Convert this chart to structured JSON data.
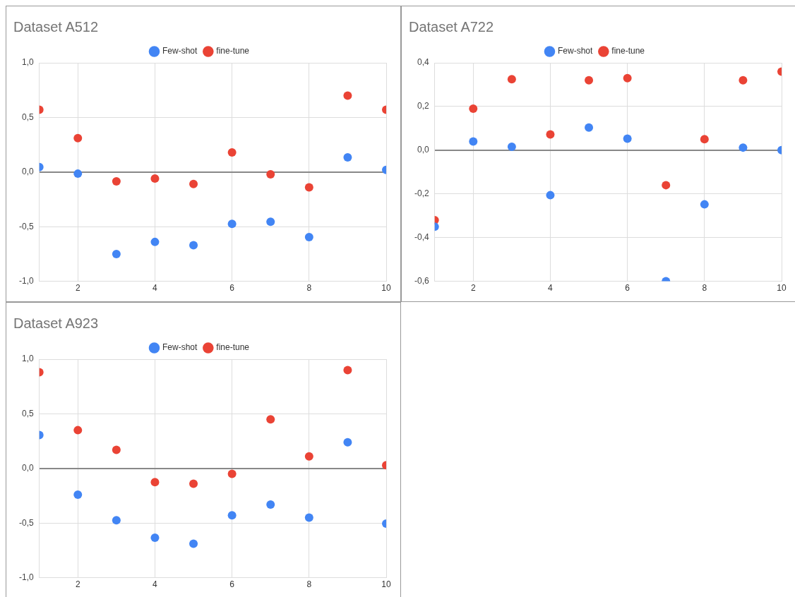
{
  "chart_data": [
    {
      "type": "scatter",
      "title": "Dataset A512",
      "x": [
        1,
        2,
        3,
        4,
        5,
        6,
        7,
        8,
        9,
        10
      ],
      "xlim": [
        1,
        10
      ],
      "xticks": [
        2,
        4,
        6,
        8,
        10
      ],
      "ylim": [
        -1,
        1
      ],
      "yticks": [
        {
          "value": -1,
          "label": "-1,0"
        },
        {
          "value": -0.5,
          "label": "-0,5"
        },
        {
          "value": 0,
          "label": "0,0"
        },
        {
          "value": 0.5,
          "label": "0,5"
        },
        {
          "value": 1,
          "label": "1,0"
        }
      ],
      "grid": true,
      "legend": "top",
      "marker": "circle",
      "series": [
        {
          "name": "Few-shot",
          "color": "#4285f4",
          "values": [
            0.045,
            -0.015,
            -0.75,
            -0.64,
            -0.67,
            -0.475,
            -0.455,
            -0.595,
            0.135,
            0.02
          ]
        },
        {
          "name": "fine-tune",
          "color": "#ea4335",
          "values": [
            0.57,
            0.31,
            -0.085,
            -0.06,
            -0.11,
            0.18,
            -0.02,
            -0.14,
            0.7,
            0.57
          ]
        }
      ]
    },
    {
      "type": "scatter",
      "title": "Dataset A722",
      "x": [
        1,
        2,
        3,
        4,
        5,
        6,
        7,
        8,
        9,
        10
      ],
      "xlim": [
        1,
        10
      ],
      "xticks": [
        2,
        4,
        6,
        8,
        10
      ],
      "ylim": [
        -0.6,
        0.4
      ],
      "yticks": [
        {
          "value": -0.6,
          "label": "-0,6"
        },
        {
          "value": -0.4,
          "label": "-0,4"
        },
        {
          "value": -0.2,
          "label": "-0,2"
        },
        {
          "value": 0,
          "label": "0,0"
        },
        {
          "value": 0.2,
          "label": "0,2"
        },
        {
          "value": 0.4,
          "label": "0,4"
        }
      ],
      "grid": true,
      "legend": "top",
      "marker": "circle",
      "series": [
        {
          "name": "Few-shot",
          "color": "#4285f4",
          "values": [
            -0.35,
            0.04,
            0.016,
            -0.206,
            0.104,
            0.053,
            -0.6,
            -0.248,
            0.012,
            0
          ]
        },
        {
          "name": "fine-tune",
          "color": "#ea4335",
          "values": [
            -0.32,
            0.19,
            0.325,
            0.072,
            0.32,
            0.33,
            -0.16,
            0.05,
            0.32,
            0.36
          ]
        }
      ]
    },
    {
      "type": "scatter",
      "title": "Dataset A923",
      "x": [
        1,
        2,
        3,
        4,
        5,
        6,
        7,
        8,
        9,
        10
      ],
      "xlim": [
        1,
        10
      ],
      "xticks": [
        2,
        4,
        6,
        8,
        10
      ],
      "ylim": [
        -1,
        1
      ],
      "yticks": [
        {
          "value": -1,
          "label": "-1,0"
        },
        {
          "value": -0.5,
          "label": "-0,5"
        },
        {
          "value": 0,
          "label": "0,0"
        },
        {
          "value": 0.5,
          "label": "0,5"
        },
        {
          "value": 1,
          "label": "1,0"
        }
      ],
      "grid": true,
      "legend": "top",
      "marker": "circle",
      "series": [
        {
          "name": "Few-shot",
          "color": "#4285f4",
          "values": [
            0.305,
            -0.24,
            -0.475,
            -0.635,
            -0.69,
            -0.43,
            -0.33,
            -0.45,
            0.24,
            -0.505
          ]
        },
        {
          "name": "fine-tune",
          "color": "#ea4335",
          "values": [
            0.88,
            0.35,
            0.17,
            -0.125,
            -0.14,
            -0.05,
            0.45,
            0.11,
            0.9,
            0.03
          ]
        }
      ]
    }
  ]
}
